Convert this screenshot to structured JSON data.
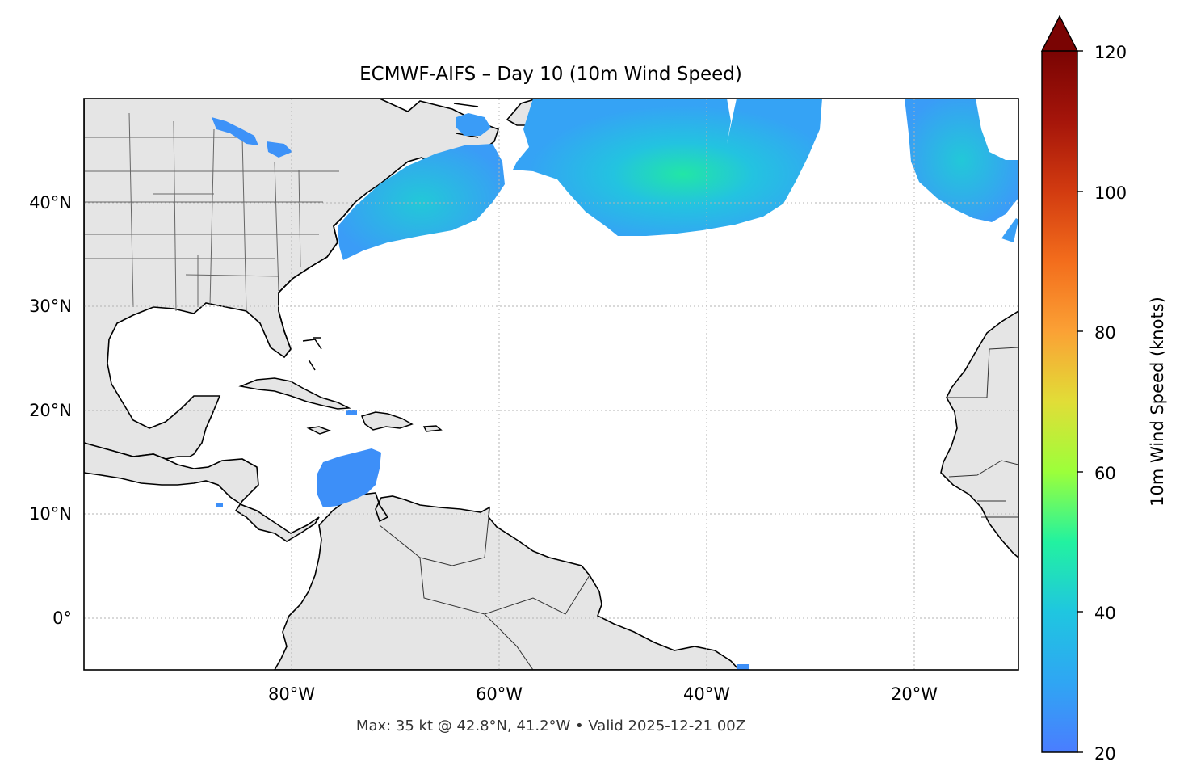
{
  "title": "ECMWF-AIFS – Day 10 (10m Wind Speed)",
  "footer": "Max: 35 kt @ 42.8°N, 41.2°W • Valid 2025-12-21 00Z",
  "colorbar": {
    "label": "10m Wind Speed (knots)",
    "min": 20,
    "max": 120,
    "extend": "max",
    "ticks": [
      "20",
      "40",
      "60",
      "80",
      "100",
      "120"
    ],
    "colors": [
      "#4a7dff",
      "#1fc6e0",
      "#22f2a0",
      "#9cff3a",
      "#e1dd37",
      "#fba135",
      "#e8561a",
      "#b8190a",
      "#7a0403"
    ]
  },
  "map": {
    "projection": "PlateCarree",
    "lon_range": [
      -100,
      -10
    ],
    "lat_range": [
      -5,
      50
    ],
    "land_color": "#e5e5e5",
    "coast_color": "#000000",
    "border_color": "#666666",
    "x_ticks": [
      "80°W",
      "60°W",
      "40°W",
      "20°W"
    ],
    "y_ticks": [
      "40°N",
      "30°N",
      "20°N",
      "10°N",
      "0°"
    ],
    "gridlines": "dotted",
    "max_wind": {
      "value_kt": 35,
      "lat": 42.8,
      "lon": -41.2
    }
  }
}
